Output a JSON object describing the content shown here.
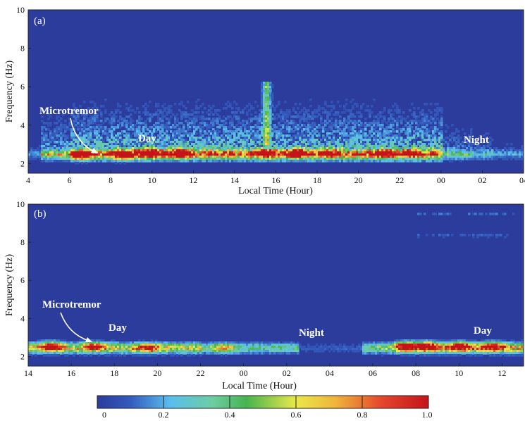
{
  "chart_data": [
    {
      "type": "heatmap",
      "panel_label": "(a)",
      "xlabel": "Local Time (Hour)",
      "ylabel": "Frequency (Hz)",
      "x_tick_labels": [
        "4",
        "6",
        "8",
        "10",
        "12",
        "14",
        "16",
        "18",
        "20",
        "22",
        "00",
        "02",
        "04"
      ],
      "x_range_hours": [
        4,
        28
      ],
      "y_ticks": [
        2,
        4,
        6,
        8,
        10
      ],
      "ylim": [
        1.5,
        10
      ],
      "annotations": [
        "Microtremor",
        "Day",
        "Night"
      ],
      "dominant_band_hz": 2.5,
      "hotspots": [
        {
          "time_h": 6.5,
          "freq": 2.5,
          "value": 0.85
        },
        {
          "time_h": 8.6,
          "freq": 2.5,
          "value": 0.95
        },
        {
          "time_h": 9.8,
          "freq": 2.6,
          "value": 0.9
        },
        {
          "time_h": 11.3,
          "freq": 2.6,
          "value": 0.85
        },
        {
          "time_h": 15.5,
          "freq": 2.6,
          "value": 0.7
        },
        {
          "time_h": 17.0,
          "freq": 2.6,
          "value": 0.85
        },
        {
          "time_h": 18.5,
          "freq": 2.6,
          "value": 0.6
        },
        {
          "time_h": 21.2,
          "freq": 2.6,
          "value": 0.6
        },
        {
          "time_h": 22.5,
          "freq": 2.6,
          "value": 0.5
        }
      ]
    },
    {
      "type": "heatmap",
      "panel_label": "(b)",
      "xlabel": "Local Time (Hour)",
      "ylabel": "Frequency (Hz)",
      "x_tick_labels": [
        "14",
        "16",
        "18",
        "20",
        "22",
        "00",
        "02",
        "04",
        "06",
        "08",
        "10",
        "12"
      ],
      "x_range_hours": [
        14,
        37
      ],
      "y_ticks": [
        2,
        4,
        6,
        8,
        10
      ],
      "ylim": [
        1.5,
        10
      ],
      "annotations": [
        "Microtremor",
        "Day",
        "Night",
        "Day"
      ],
      "dominant_band_hz": 2.5,
      "hotspots": [
        {
          "time_h": 15.0,
          "freq": 2.6,
          "value": 0.85
        },
        {
          "time_h": 17.0,
          "freq": 2.6,
          "value": 0.6
        },
        {
          "time_h": 19.5,
          "freq": 2.5,
          "value": 0.6
        },
        {
          "time_h": 23.0,
          "freq": 2.5,
          "value": 0.55
        },
        {
          "time_h": 31.5,
          "freq": 2.6,
          "value": 0.95
        },
        {
          "time_h": 32.5,
          "freq": 2.6,
          "value": 0.95
        },
        {
          "time_h": 34.0,
          "freq": 2.6,
          "value": 0.85
        },
        {
          "time_h": 35.5,
          "freq": 2.6,
          "value": 0.75
        }
      ]
    }
  ],
  "colorbar": {
    "ticks": [
      "0",
      "0.2",
      "0.4",
      "0.6",
      "0.8",
      "1.0"
    ],
    "colors": [
      "#2b3c9c",
      "#3d6fd0",
      "#5cc6ee",
      "#7fd486",
      "#4fb84a",
      "#e9e94a",
      "#f0b93a",
      "#e64a2e",
      "#c8181c"
    ]
  },
  "colors": {
    "background": "#2b3c9c",
    "annotation_text": "#ffffff"
  }
}
